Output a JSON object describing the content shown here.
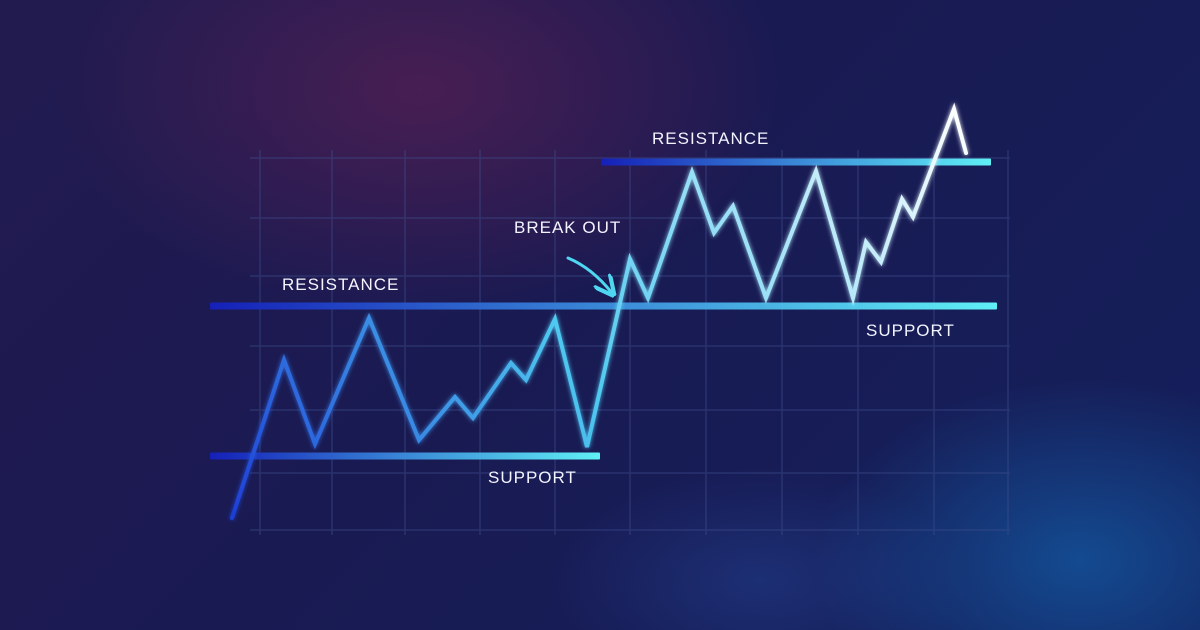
{
  "chart_data": {
    "type": "line",
    "title": "",
    "xlabel": "",
    "ylabel": "",
    "grid": true,
    "series": [
      {
        "values": [
          [
            232,
            518
          ],
          [
            284,
            360
          ],
          [
            315,
            444
          ],
          [
            369,
            318
          ],
          [
            419,
            440
          ],
          [
            455,
            397
          ],
          [
            473,
            418
          ],
          [
            511,
            363
          ],
          [
            526,
            380
          ],
          [
            555,
            319
          ],
          [
            587,
            447
          ],
          [
            630,
            259
          ],
          [
            648,
            298
          ],
          [
            692,
            172
          ],
          [
            714,
            233
          ],
          [
            733,
            206
          ],
          [
            766,
            298
          ],
          [
            816,
            171
          ],
          [
            853,
            298
          ],
          [
            866,
            242
          ],
          [
            881,
            262
          ],
          [
            902,
            199
          ],
          [
            913,
            217
          ],
          [
            954,
            109
          ],
          [
            966,
            153
          ]
        ]
      }
    ],
    "levels": [
      {
        "label": "RESISTANCE",
        "x_start": 210,
        "x_end": 997,
        "y": 306
      },
      {
        "label": "SUPPORT",
        "x_start": 210,
        "x_end": 600,
        "y": 456
      },
      {
        "label": "RESISTANCE",
        "x_start": 601,
        "x_end": 991,
        "y": 162
      },
      {
        "label": "SUPPORT",
        "x_start": 210,
        "x_end": 997,
        "y": 306
      }
    ],
    "annotations": [
      {
        "text": "BREAK OUT",
        "x": 630,
        "y": 259
      }
    ],
    "colors": {
      "line_start": "#1e3fd6",
      "line_end": "#ffffff",
      "level_start": "#1520b8",
      "level_end": "#5ff0f5",
      "grid": "#3f4f8e",
      "text": "#f2f4ff"
    }
  }
}
